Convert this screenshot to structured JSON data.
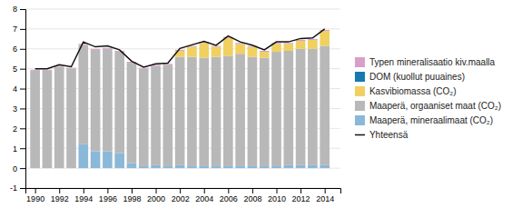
{
  "chart_data": {
    "type": "bar",
    "stacked": true,
    "grid": true,
    "legend": "right",
    "x": [
      1990,
      1991,
      1992,
      1993,
      1994,
      1995,
      1996,
      1997,
      1998,
      1999,
      2000,
      2001,
      2002,
      2003,
      2004,
      2005,
      2006,
      2007,
      2008,
      2009,
      2010,
      2011,
      2012,
      2013,
      2014
    ],
    "xlim": [
      1989.2,
      2015.3
    ],
    "xticks": [
      1990,
      1992,
      1994,
      1996,
      1998,
      2000,
      2002,
      2004,
      2006,
      2008,
      2010,
      2012,
      2014
    ],
    "ylim": [
      -1,
      8
    ],
    "yticks": [
      -1,
      0,
      1,
      2,
      3,
      4,
      5,
      6,
      7,
      8
    ],
    "series": [
      {
        "name": "Maaperä, mineraalimaat (CO₂)",
        "color": "#8ab8d8",
        "values": [
          0.0,
          0.0,
          0.0,
          0.0,
          1.2,
          0.85,
          0.85,
          0.75,
          0.25,
          0.1,
          0.15,
          0.1,
          0.15,
          0.1,
          0.1,
          0.1,
          0.1,
          0.1,
          0.1,
          0.1,
          0.1,
          0.15,
          0.15,
          0.15,
          0.15
        ]
      },
      {
        "name": "Maaperä, orgaaniset maat (CO₂)",
        "color": "#b8b8b8",
        "values": [
          4.9,
          4.9,
          5.1,
          5.0,
          5.0,
          5.1,
          5.15,
          5.1,
          5.05,
          4.9,
          5.0,
          5.1,
          5.45,
          5.5,
          5.45,
          5.5,
          5.55,
          5.65,
          5.5,
          5.45,
          5.75,
          5.75,
          5.85,
          5.85,
          6.0
        ]
      },
      {
        "name": "Kasvibiomassa (CO₂)",
        "color": "#f0d060",
        "values": [
          0.0,
          0.0,
          0.0,
          0.0,
          0.0,
          0.0,
          0.0,
          0.0,
          0.0,
          0.0,
          0.0,
          0.0,
          0.3,
          0.5,
          0.75,
          0.5,
          0.9,
          0.5,
          0.5,
          0.3,
          0.4,
          0.35,
          0.4,
          0.45,
          0.75
        ]
      },
      {
        "name": "DOM (kuollut puuaines)",
        "color": "#1878b0",
        "values": [
          0.0,
          0.0,
          0.0,
          0.0,
          0.0,
          0.0,
          0.0,
          0.0,
          0.0,
          0.0,
          0.0,
          0.0,
          0.0,
          0.0,
          0.0,
          0.0,
          0.0,
          0.0,
          0.0,
          0.0,
          0.0,
          0.0,
          0.0,
          0.0,
          0.0
        ]
      },
      {
        "name": "Typen mineralisaatio kiv.maalla",
        "color": "#d8a0c8",
        "values": [
          0.05,
          0.05,
          0.05,
          0.05,
          0.05,
          0.05,
          0.05,
          0.05,
          0.05,
          0.05,
          0.05,
          0.05,
          0.05,
          0.05,
          0.05,
          0.05,
          0.05,
          0.05,
          0.05,
          0.05,
          0.05,
          0.05,
          0.05,
          0.05,
          0.05
        ]
      },
      {
        "name": "Yhteensä",
        "type": "line",
        "color": "#111111",
        "values": [
          5.0,
          5.0,
          5.2,
          5.1,
          6.35,
          6.1,
          6.15,
          5.95,
          5.38,
          5.08,
          5.25,
          5.28,
          6.02,
          6.2,
          6.38,
          6.18,
          6.65,
          6.35,
          6.18,
          5.95,
          6.35,
          6.35,
          6.52,
          6.55,
          7.0
        ]
      }
    ]
  }
}
